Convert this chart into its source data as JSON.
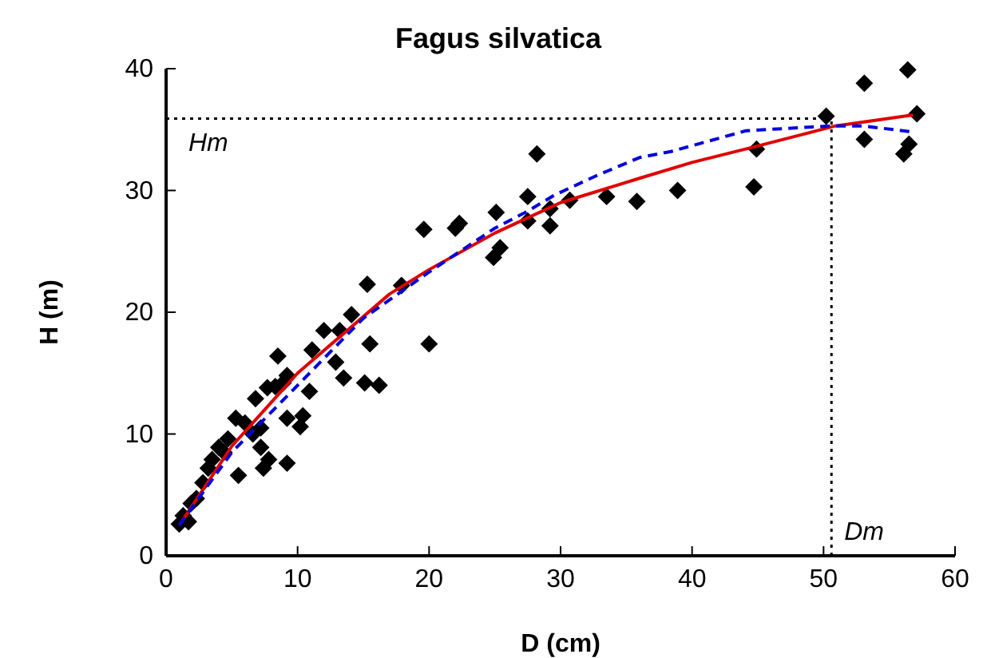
{
  "chart_data": {
    "type": "scatter",
    "title": "Fagus silvatica",
    "xlabel": "D (cm)",
    "ylabel": "H (m)",
    "xlim": [
      0,
      60
    ],
    "ylim": [
      0,
      40
    ],
    "xticks": [
      0,
      10,
      20,
      30,
      40,
      50,
      60
    ],
    "yticks": [
      0,
      10,
      20,
      30,
      40
    ],
    "grid": false,
    "series": [
      {
        "color": "#000000",
        "marker": "diamond",
        "x": [
          50.2,
          53.1,
          56.4,
          57.1,
          53.1,
          56.5,
          56.1,
          44.7,
          44.9,
          38.9,
          35.8,
          33.5,
          28.2,
          27.5,
          25.1,
          27.5,
          29.2,
          29.2,
          30.7,
          19.6,
          22.0,
          22.3,
          25.4,
          24.9,
          15.3,
          17.9,
          14.1,
          15.5,
          20.0,
          8.5,
          12.0,
          13.2,
          11.1,
          12.9,
          13.5,
          15.1,
          16.2,
          10.9,
          9.2,
          8.9,
          8.3,
          7.7,
          6.8,
          9.2,
          10.2,
          7.2,
          6.0,
          5.3,
          4.0,
          3.5,
          3.2,
          2.8,
          2.3,
          1.9,
          1.3,
          1.0,
          1.7,
          5.5,
          7.4,
          7.8,
          9.2,
          6.6,
          4.7,
          4.4,
          7.2,
          10.4
        ],
        "values": [
          36.1,
          38.8,
          39.9,
          36.3,
          34.2,
          33.8,
          33.0,
          30.3,
          33.4,
          30.0,
          29.1,
          29.5,
          33.0,
          29.5,
          28.2,
          27.5,
          28.5,
          27.1,
          29.2,
          26.8,
          26.9,
          27.3,
          25.3,
          24.5,
          22.3,
          22.2,
          19.8,
          17.4,
          17.4,
          16.4,
          18.5,
          18.5,
          16.9,
          15.9,
          14.6,
          14.2,
          14.0,
          13.5,
          14.8,
          14.2,
          13.9,
          13.8,
          12.9,
          11.3,
          10.6,
          8.9,
          10.9,
          11.3,
          8.9,
          7.9,
          7.2,
          6.0,
          4.7,
          4.3,
          3.3,
          2.6,
          2.8,
          6.6,
          7.2,
          7.9,
          7.6,
          10.0,
          9.6,
          8.5,
          10.5,
          11.5
        ]
      },
      {
        "type": "line",
        "color": "#e00000",
        "line_style": "solid",
        "x": [
          1,
          5,
          10,
          17,
          20,
          25,
          30,
          36,
          40,
          44.8,
          50.9,
          56.8
        ],
        "values": [
          2.5,
          9,
          15,
          21.5,
          23.5,
          26.5,
          29,
          31,
          32.3,
          33.6,
          35.3,
          36.2
        ]
      },
      {
        "type": "line",
        "color": "#0000e0",
        "line_style": "dashed",
        "x": [
          1,
          5,
          10,
          15,
          20,
          25,
          27.5,
          29.5,
          32.7,
          36,
          38.4,
          44.1,
          50.5,
          53,
          56.8
        ],
        "values": [
          2.5,
          8.5,
          14,
          19.5,
          23.3,
          26.9,
          28.3,
          29.6,
          31.2,
          32.7,
          33.2,
          34.9,
          35.3,
          35.3,
          34.8
        ]
      }
    ],
    "ref_lines": [
      {
        "axis": "y",
        "value": 35.9,
        "label": "Hm",
        "line_style": "dotted",
        "color": "#000000"
      },
      {
        "axis": "x",
        "value": 50.6,
        "label": "Dm",
        "line_style": "dotted",
        "color": "#000000"
      }
    ]
  }
}
